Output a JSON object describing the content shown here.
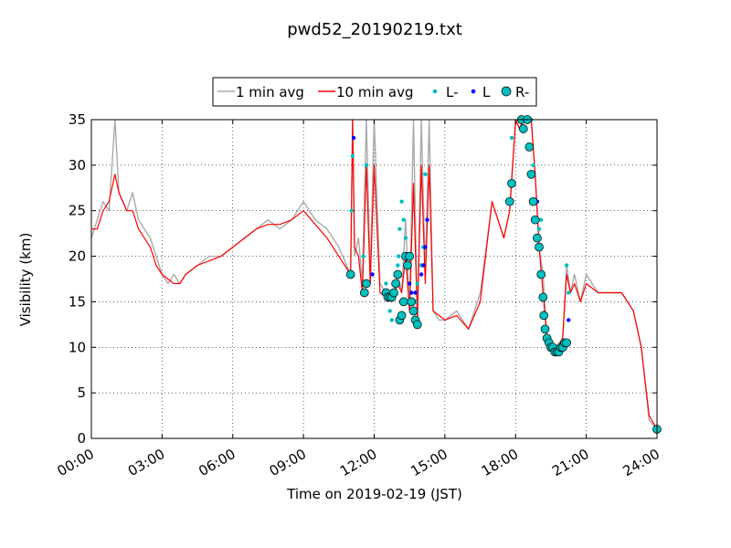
{
  "chart_data": {
    "type": "line",
    "title": "pwd52_20190219.txt",
    "xlabel": "Time on 2019-02-19 (JST)",
    "ylabel": "Visibility (km)",
    "xlim": [
      "00:00",
      "24:00"
    ],
    "ylim": [
      0,
      35
    ],
    "xticks": [
      "00:00",
      "03:00",
      "06:00",
      "09:00",
      "12:00",
      "15:00",
      "18:00",
      "21:00",
      "24:00"
    ],
    "yticks": [
      0,
      5,
      10,
      15,
      20,
      25,
      30,
      35
    ],
    "grid": true,
    "legend_position": "top-center",
    "colors": {
      "one_min": "#aaaaaa",
      "ten_min": "#ff0000",
      "l_minus": "#00bfbf",
      "l": "#0000ff",
      "r_minus": "#00bfbf"
    },
    "series": [
      {
        "name": "1 min avg",
        "kind": "line",
        "x": [
          "00:00",
          "00:15",
          "00:30",
          "00:45",
          "01:00",
          "01:10",
          "01:20",
          "01:30",
          "01:45",
          "02:00",
          "02:15",
          "02:30",
          "02:45",
          "03:00",
          "03:15",
          "03:30",
          "03:45",
          "04:00",
          "04:30",
          "05:00",
          "05:30",
          "06:00",
          "06:30",
          "07:00",
          "07:30",
          "08:00",
          "08:30",
          "09:00",
          "09:30",
          "10:00",
          "10:30",
          "11:00",
          "11:05",
          "11:10",
          "11:20",
          "11:30",
          "11:40",
          "11:50",
          "12:00",
          "12:15",
          "12:30",
          "12:45",
          "13:00",
          "13:10",
          "13:20",
          "13:30",
          "13:40",
          "13:50",
          "14:00",
          "14:10",
          "14:20",
          "14:30",
          "14:45",
          "15:00",
          "15:30",
          "16:00",
          "16:30",
          "17:00",
          "17:30",
          "17:45",
          "18:00",
          "18:10",
          "18:20",
          "18:30",
          "18:40",
          "18:50",
          "19:00",
          "19:10",
          "19:20",
          "19:30",
          "19:45",
          "20:00",
          "20:10",
          "20:20",
          "20:30",
          "20:45",
          "21:00",
          "21:30",
          "22:00",
          "22:30",
          "23:00",
          "23:20",
          "23:40",
          "24:00"
        ],
        "y": [
          22,
          24,
          26,
          25,
          35,
          27,
          26,
          25,
          27,
          24,
          23,
          22,
          20,
          18,
          17,
          18,
          17,
          18,
          19,
          20,
          20,
          21,
          22,
          23,
          24,
          23,
          24,
          26,
          24,
          23,
          21,
          18,
          35,
          20,
          22,
          17,
          35,
          18,
          35,
          17,
          16,
          15,
          18,
          16,
          24,
          14,
          35,
          13,
          35,
          18,
          35,
          14,
          13,
          13,
          14,
          12,
          16,
          26,
          22,
          25,
          35,
          34,
          35,
          35,
          35,
          29,
          21,
          18,
          11,
          10,
          10,
          11,
          19,
          16,
          18,
          15,
          18,
          16,
          16,
          16,
          14,
          10,
          2,
          1
        ]
      },
      {
        "name": "10 min avg",
        "kind": "line",
        "x": [
          "00:00",
          "00:15",
          "00:30",
          "00:45",
          "01:00",
          "01:10",
          "01:20",
          "01:30",
          "01:45",
          "02:00",
          "02:15",
          "02:30",
          "02:45",
          "03:00",
          "03:15",
          "03:30",
          "03:45",
          "04:00",
          "04:30",
          "05:00",
          "05:30",
          "06:00",
          "06:30",
          "07:00",
          "07:30",
          "08:00",
          "08:30",
          "09:00",
          "09:30",
          "10:00",
          "10:30",
          "11:00",
          "11:05",
          "11:10",
          "11:20",
          "11:30",
          "11:40",
          "11:50",
          "12:00",
          "12:15",
          "12:30",
          "12:45",
          "13:00",
          "13:10",
          "13:20",
          "13:30",
          "13:40",
          "13:50",
          "14:00",
          "14:10",
          "14:20",
          "14:30",
          "14:45",
          "15:00",
          "15:30",
          "16:00",
          "16:30",
          "17:00",
          "17:30",
          "17:45",
          "18:00",
          "18:10",
          "18:20",
          "18:30",
          "18:40",
          "18:50",
          "19:00",
          "19:10",
          "19:20",
          "19:30",
          "19:45",
          "20:00",
          "20:10",
          "20:20",
          "20:30",
          "20:45",
          "21:00",
          "21:30",
          "22:00",
          "22:30",
          "23:00",
          "23:20",
          "23:40",
          "24:00"
        ],
        "y": [
          23,
          23,
          25,
          26,
          29,
          27,
          26,
          25,
          25,
          23,
          22,
          21,
          19,
          18,
          17.5,
          17,
          17,
          18,
          19,
          19.5,
          20,
          21,
          22,
          23,
          23.5,
          23.5,
          24,
          25,
          23.5,
          22,
          20,
          18,
          35,
          21,
          20,
          16,
          30,
          17,
          30,
          16,
          15.5,
          15,
          17,
          16,
          20,
          14,
          28,
          13,
          30,
          17,
          30,
          14,
          13.5,
          13,
          13.5,
          12,
          15,
          26,
          22,
          25,
          35,
          34,
          35,
          35,
          35,
          29,
          21,
          16,
          11,
          10,
          10,
          11,
          18,
          16,
          17,
          15,
          17,
          16,
          16,
          16,
          14,
          10,
          2.5,
          1
        ]
      },
      {
        "name": "L-",
        "kind": "scatter",
        "x": [
          "11:00",
          "11:02",
          "11:05",
          "11:30",
          "11:32",
          "11:40",
          "12:30",
          "12:40",
          "12:45",
          "13:00",
          "13:02",
          "13:05",
          "13:10",
          "13:15",
          "13:20",
          "13:45",
          "13:50",
          "14:00",
          "14:05",
          "14:10",
          "17:45",
          "17:50",
          "18:40",
          "18:45",
          "18:50",
          "19:00",
          "19:05",
          "20:00",
          "20:10",
          "20:15"
        ],
        "y": [
          18,
          25,
          31,
          16,
          20,
          30,
          17,
          14,
          13,
          19,
          20,
          23,
          26,
          24,
          22,
          15,
          17,
          19,
          21,
          29,
          26,
          33,
          35,
          30,
          26,
          23,
          24,
          10,
          19,
          16
        ]
      },
      {
        "name": "L",
        "kind": "scatter",
        "x": [
          "11:08",
          "11:55",
          "13:30",
          "13:35",
          "13:40",
          "13:45",
          "14:00",
          "14:05",
          "14:10",
          "14:15",
          "18:55",
          "20:15"
        ],
        "y": [
          33,
          18,
          17,
          16,
          15,
          16,
          18,
          19,
          21,
          24,
          26,
          13
        ]
      },
      {
        "name": "R-",
        "kind": "scatter",
        "x": [
          "11:00",
          "11:35",
          "11:40",
          "12:30",
          "12:35",
          "12:40",
          "12:45",
          "12:50",
          "12:55",
          "13:00",
          "13:05",
          "13:10",
          "13:15",
          "13:20",
          "13:25",
          "13:30",
          "13:35",
          "13:40",
          "13:45",
          "13:50",
          "17:45",
          "17:50",
          "18:15",
          "18:20",
          "18:30",
          "18:35",
          "18:40",
          "18:45",
          "18:50",
          "18:55",
          "19:00",
          "19:05",
          "19:10",
          "19:12",
          "19:15",
          "19:20",
          "19:25",
          "19:30",
          "19:35",
          "19:40",
          "19:45",
          "19:50",
          "19:55",
          "20:00",
          "20:05",
          "20:10",
          "24:00"
        ],
        "y": [
          18,
          16,
          17,
          16,
          15.5,
          15.5,
          15.5,
          16,
          17,
          18,
          13,
          13.5,
          15,
          20,
          19,
          20,
          15,
          14,
          13,
          12.5,
          26,
          28,
          35,
          34,
          35,
          32,
          29,
          26,
          24,
          22,
          21,
          18,
          15.5,
          13.5,
          12,
          11,
          10.5,
          10,
          10,
          9.5,
          9.5,
          9.5,
          10,
          10,
          10.5,
          10.5,
          1
        ]
      }
    ]
  }
}
